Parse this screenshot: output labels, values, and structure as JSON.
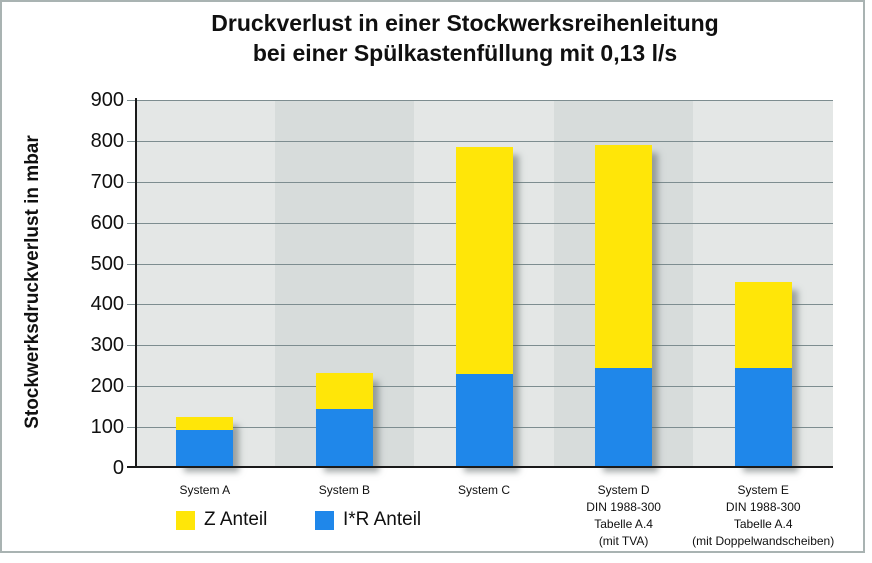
{
  "title": {
    "line1": "Druckverlust in einer Stockwerksreihenleitung",
    "line2": "bei einer Spülkastenfüllung mit 0,13 l/s"
  },
  "chart_data": {
    "type": "bar",
    "stacked": true,
    "title": "Druckverlust in einer Stockwerksreihenleitung bei einer Spülkastenfüllung mit 0,13 l/s",
    "ylabel": "Stockwerksdruckverlust in mbar",
    "xlabel": "",
    "ylim": [
      0,
      900
    ],
    "y_ticks": [
      0,
      100,
      200,
      300,
      400,
      500,
      600,
      700,
      800,
      900
    ],
    "grid": true,
    "legend_position": "bottom-left",
    "categories": [
      [
        "System A"
      ],
      [
        "System B"
      ],
      [
        "System C"
      ],
      [
        "System D",
        "DIN 1988-300",
        "Tabelle A.4",
        "(mit TVA)"
      ],
      [
        "System E",
        "DIN 1988-300",
        "Tabelle A.4",
        "(mit Doppelwandscheiben)"
      ]
    ],
    "series": [
      {
        "name": "I*R Anteil",
        "color": "#1f87ea",
        "values": [
          88,
          140,
          224,
          240,
          240
        ]
      },
      {
        "name": "Z Anteil",
        "color": "#ffe608",
        "values": [
          31,
          88,
          556,
          545,
          210
        ]
      }
    ],
    "totals": [
      119,
      228,
      780,
      785,
      450
    ]
  },
  "legend": [
    {
      "label": "Z Anteil",
      "color": "#ffe608"
    },
    {
      "label": "I*R Anteil",
      "color": "#1f87ea"
    }
  ],
  "colors": {
    "band_light": "#e4e7e6",
    "band_dark": "#d7dcdb",
    "gridline": "#7d8d90",
    "axis": "#1a1a1a",
    "frame_border": "#a9b3b2",
    "text": "#101010"
  }
}
